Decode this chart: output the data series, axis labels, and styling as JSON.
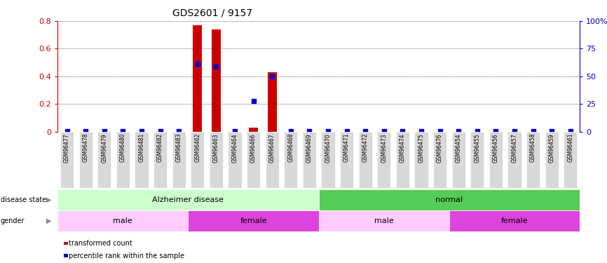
{
  "title": "GDS2601 / 9157",
  "samples": [
    "GSM96477",
    "GSM96478",
    "GSM96479",
    "GSM96480",
    "GSM96481",
    "GSM96482",
    "GSM96483",
    "GSM96462",
    "GSM96463",
    "GSM96464",
    "GSM96466",
    "GSM96467",
    "GSM96468",
    "GSM96469",
    "GSM96470",
    "GSM96471",
    "GSM96472",
    "GSM96473",
    "GSM96474",
    "GSM96475",
    "GSM96476",
    "GSM96454",
    "GSM96455",
    "GSM96456",
    "GSM96457",
    "GSM96458",
    "GSM96459",
    "GSM96461"
  ],
  "red_values": [
    0.0,
    0.0,
    0.0,
    0.0,
    0.0,
    0.0,
    0.0,
    0.77,
    0.74,
    0.0,
    0.03,
    0.43,
    0.0,
    0.0,
    0.0,
    0.0,
    0.0,
    0.0,
    0.0,
    0.0,
    0.0,
    0.0,
    0.0,
    0.0,
    0.0,
    0.0,
    0.0,
    0.0
  ],
  "blue_values": [
    0.005,
    0.005,
    0.005,
    0.005,
    0.005,
    0.005,
    0.005,
    0.49,
    0.47,
    0.005,
    0.22,
    0.4,
    0.005,
    0.005,
    0.005,
    0.005,
    0.005,
    0.005,
    0.005,
    0.005,
    0.005,
    0.005,
    0.005,
    0.005,
    0.005,
    0.005,
    0.005,
    0.005
  ],
  "ylim_left": [
    0,
    0.8
  ],
  "ylim_right": [
    0,
    100
  ],
  "yticks_left": [
    0.0,
    0.2,
    0.4,
    0.6,
    0.8
  ],
  "ytick_labels_left": [
    "0",
    "0.2",
    "0.4",
    "0.6",
    "0.8"
  ],
  "yticks_right": [
    0,
    25,
    50,
    75,
    100
  ],
  "ytick_labels_right": [
    "0",
    "25",
    "50",
    "75",
    "100%"
  ],
  "disease_state_groups": [
    {
      "label": "Alzheimer disease",
      "start": 0,
      "end": 14,
      "color": "#ccffcc"
    },
    {
      "label": "normal",
      "start": 14,
      "end": 28,
      "color": "#55cc55"
    }
  ],
  "gender_groups": [
    {
      "label": "male",
      "start": 0,
      "end": 7,
      "color": "#ffccff"
    },
    {
      "label": "female",
      "start": 7,
      "end": 14,
      "color": "#dd44dd"
    },
    {
      "label": "male",
      "start": 14,
      "end": 21,
      "color": "#ffccff"
    },
    {
      "label": "female",
      "start": 21,
      "end": 28,
      "color": "#dd44dd"
    }
  ],
  "legend_items": [
    {
      "label": "transformed count",
      "color": "#cc0000"
    },
    {
      "label": "percentile rank within the sample",
      "color": "#0000cc"
    }
  ],
  "bar_color": "#cc0000",
  "dot_color": "#0000cc",
  "axis_color_left": "#cc0000",
  "axis_color_right": "#0000cc",
  "bg_color": "#ffffff"
}
